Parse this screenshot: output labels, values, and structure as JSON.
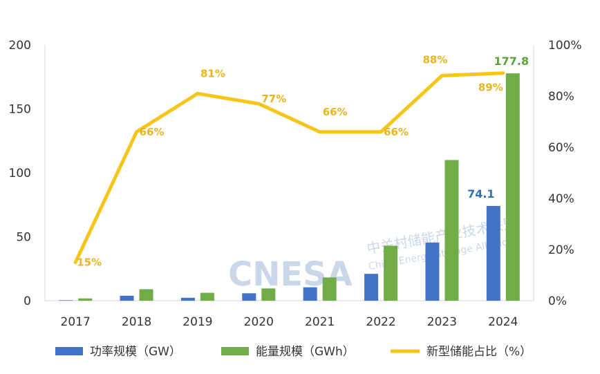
{
  "watermark": {
    "text": "CNESA",
    "cn": "中关村储能产业技术联盟",
    "en": "China Energy Storage Alliance"
  },
  "legend": {
    "power": "功率规模（GW）",
    "energy": "能量规模（GWh）",
    "share": "新型储能占比（%）"
  },
  "chart_data": {
    "type": "bar",
    "categories": [
      "2017",
      "2018",
      "2019",
      "2020",
      "2021",
      "2022",
      "2023",
      "2024"
    ],
    "series": [
      {
        "name": "功率规模（GW）",
        "values": [
          0.4,
          3.9,
          2.3,
          5.8,
          10.5,
          21.0,
          45.5,
          74.1
        ],
        "color": "#4472c4"
      },
      {
        "name": "能量规模（GWh）",
        "values": [
          1.8,
          9.0,
          6.2,
          9.6,
          18.2,
          43.0,
          110.0,
          177.8
        ],
        "color": "#70ad47"
      },
      {
        "name": "新型储能占比（%）",
        "type": "line",
        "axis": "right",
        "values": [
          15,
          66,
          81,
          77,
          66,
          66,
          88,
          89
        ],
        "color": "#f5c518"
      }
    ],
    "left_axis": {
      "ylim": [
        0,
        200
      ],
      "ticks": [
        "0",
        "50",
        "100",
        "150",
        "200"
      ]
    },
    "right_axis": {
      "ylim": [
        0,
        100
      ],
      "ticks": [
        "0%",
        "20%",
        "40%",
        "60%",
        "80%",
        "100%"
      ]
    },
    "data_labels": {
      "share": [
        "15%",
        "66%",
        "81%",
        "77%",
        "66%",
        "66%",
        "88%",
        "89%"
      ],
      "power_last": "74.1",
      "energy_last": "177.8"
    },
    "grid": false,
    "legend_position": "bottom"
  }
}
